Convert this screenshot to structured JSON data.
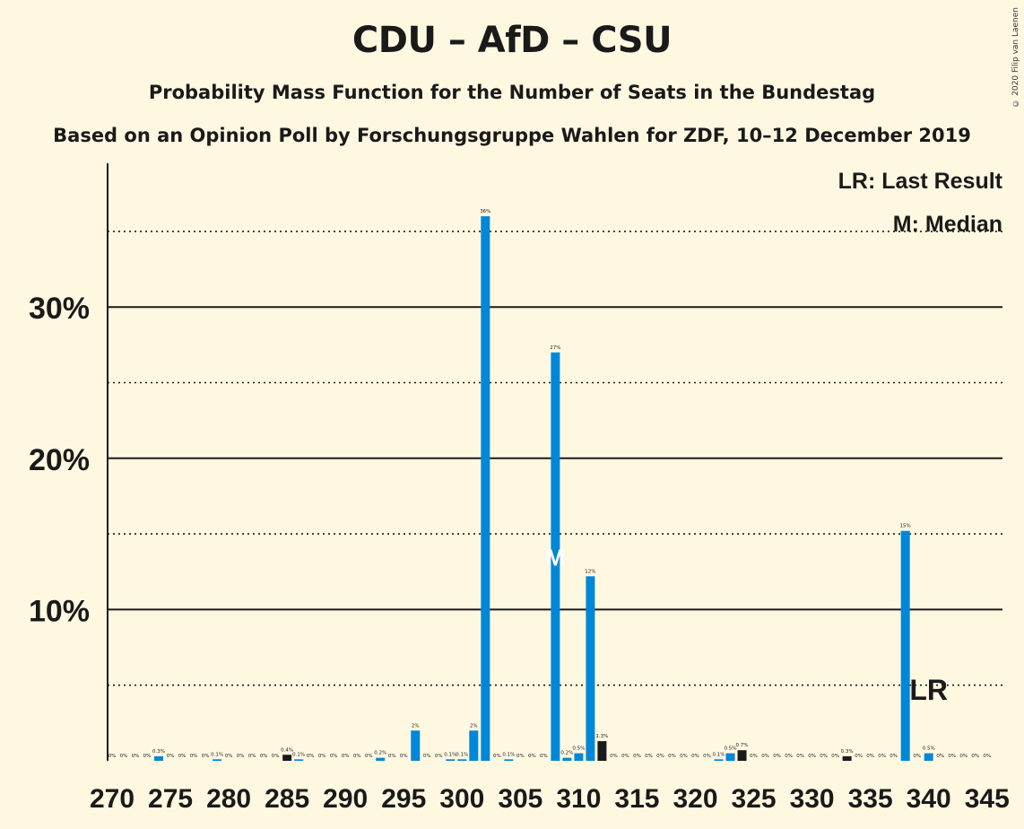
{
  "title": "CDU – AfD – CSU",
  "subtitle": "Probability Mass Function for the Number of Seats in the Bundestag",
  "subtitle2": "Based on an Opinion Poll by Forschungsgruppe Wahlen for ZDF, 10–12 December 2019",
  "copyright": "© 2020 Filip van Laenen",
  "legend": {
    "last_result": "LR: Last Result",
    "median": "M: Median"
  },
  "markers": {
    "median_label": "M",
    "median_seat": 308,
    "last_result_label": "LR",
    "last_result_seat": 340
  },
  "colors": {
    "background": "#FFF8E1",
    "bar_blue": "#0087D7",
    "bar_black": "#1a1a1a"
  },
  "chart_data": {
    "type": "bar",
    "title": "CDU – AfD – CSU",
    "xlabel": "",
    "ylabel": "",
    "ylim": [
      0,
      40
    ],
    "y_ticks": [
      "10%",
      "20%",
      "30%"
    ],
    "y_tick_values": [
      10,
      20,
      30
    ],
    "minor_gridlines": [
      5,
      15,
      25,
      35
    ],
    "x_ticks": [
      270,
      275,
      280,
      285,
      290,
      295,
      300,
      305,
      310,
      315,
      320,
      325,
      330,
      335,
      340,
      345
    ],
    "x_range": [
      270,
      345
    ],
    "bars": [
      {
        "seat": 270,
        "value": 0,
        "label": "0%",
        "color": "blue"
      },
      {
        "seat": 271,
        "value": 0,
        "label": "0%",
        "color": "blue"
      },
      {
        "seat": 272,
        "value": 0,
        "label": "0%",
        "color": "blue"
      },
      {
        "seat": 273,
        "value": 0,
        "label": "0%",
        "color": "blue"
      },
      {
        "seat": 274,
        "value": 0.3,
        "label": "0.3%",
        "color": "blue"
      },
      {
        "seat": 275,
        "value": 0,
        "label": "0%",
        "color": "blue"
      },
      {
        "seat": 276,
        "value": 0,
        "label": "0%",
        "color": "blue"
      },
      {
        "seat": 277,
        "value": 0,
        "label": "0%",
        "color": "blue"
      },
      {
        "seat": 278,
        "value": 0,
        "label": "0%",
        "color": "blue"
      },
      {
        "seat": 279,
        "value": 0.1,
        "label": "0.1%",
        "color": "blue"
      },
      {
        "seat": 280,
        "value": 0,
        "label": "0%",
        "color": "blue"
      },
      {
        "seat": 281,
        "value": 0,
        "label": "0%",
        "color": "blue"
      },
      {
        "seat": 282,
        "value": 0,
        "label": "0%",
        "color": "blue"
      },
      {
        "seat": 283,
        "value": 0,
        "label": "0%",
        "color": "blue"
      },
      {
        "seat": 284,
        "value": 0,
        "label": "0%",
        "color": "blue"
      },
      {
        "seat": 285,
        "value": 0.4,
        "label": "0.4%",
        "color": "black"
      },
      {
        "seat": 286,
        "value": 0.1,
        "label": "0.1%",
        "color": "blue"
      },
      {
        "seat": 287,
        "value": 0,
        "label": "0%",
        "color": "blue"
      },
      {
        "seat": 288,
        "value": 0,
        "label": "0%",
        "color": "blue"
      },
      {
        "seat": 289,
        "value": 0,
        "label": "0%",
        "color": "blue"
      },
      {
        "seat": 290,
        "value": 0,
        "label": "0%",
        "color": "blue"
      },
      {
        "seat": 291,
        "value": 0,
        "label": "0%",
        "color": "blue"
      },
      {
        "seat": 292,
        "value": 0,
        "label": "0%",
        "color": "blue"
      },
      {
        "seat": 293,
        "value": 0.2,
        "label": "0.2%",
        "color": "blue"
      },
      {
        "seat": 294,
        "value": 0,
        "label": "0%",
        "color": "blue"
      },
      {
        "seat": 295,
        "value": 0,
        "label": "0%",
        "color": "blue"
      },
      {
        "seat": 296,
        "value": 2,
        "label": "2%",
        "color": "blue"
      },
      {
        "seat": 297,
        "value": 0,
        "label": "0%",
        "color": "blue"
      },
      {
        "seat": 298,
        "value": 0,
        "label": "0%",
        "color": "blue"
      },
      {
        "seat": 299,
        "value": 0.1,
        "label": "0.1%",
        "color": "blue"
      },
      {
        "seat": 300,
        "value": 0.1,
        "label": "0.1%",
        "color": "blue"
      },
      {
        "seat": 301,
        "value": 2,
        "label": "2%",
        "color": "blue"
      },
      {
        "seat": 302,
        "value": 36,
        "label": "36%",
        "color": "blue"
      },
      {
        "seat": 303,
        "value": 0,
        "label": "0%",
        "color": "blue"
      },
      {
        "seat": 304,
        "value": 0.1,
        "label": "0.1%",
        "color": "blue"
      },
      {
        "seat": 305,
        "value": 0,
        "label": "0%",
        "color": "blue"
      },
      {
        "seat": 306,
        "value": 0,
        "label": "0%",
        "color": "blue"
      },
      {
        "seat": 307,
        "value": 0,
        "label": "0%",
        "color": "blue"
      },
      {
        "seat": 308,
        "value": 27,
        "label": "27%",
        "color": "blue"
      },
      {
        "seat": 309,
        "value": 0.2,
        "label": "0.2%",
        "color": "blue"
      },
      {
        "seat": 310,
        "value": 0.5,
        "label": "0.5%",
        "color": "blue"
      },
      {
        "seat": 311,
        "value": 12.2,
        "label": "12%",
        "color": "blue"
      },
      {
        "seat": 312,
        "value": 1.3,
        "label": "1.3%",
        "color": "black"
      },
      {
        "seat": 313,
        "value": 0,
        "label": "0%",
        "color": "blue"
      },
      {
        "seat": 314,
        "value": 0,
        "label": "0%",
        "color": "blue"
      },
      {
        "seat": 315,
        "value": 0,
        "label": "0%",
        "color": "blue"
      },
      {
        "seat": 316,
        "value": 0,
        "label": "0%",
        "color": "blue"
      },
      {
        "seat": 317,
        "value": 0,
        "label": "0%",
        "color": "blue"
      },
      {
        "seat": 318,
        "value": 0,
        "label": "0%",
        "color": "blue"
      },
      {
        "seat": 319,
        "value": 0,
        "label": "0%",
        "color": "blue"
      },
      {
        "seat": 320,
        "value": 0,
        "label": "0%",
        "color": "blue"
      },
      {
        "seat": 321,
        "value": 0,
        "label": "0%",
        "color": "blue"
      },
      {
        "seat": 322,
        "value": 0.1,
        "label": "0.1%",
        "color": "blue"
      },
      {
        "seat": 323,
        "value": 0.5,
        "label": "0.5%",
        "color": "blue"
      },
      {
        "seat": 324,
        "value": 0.7,
        "label": "0.7%",
        "color": "black"
      },
      {
        "seat": 325,
        "value": 0,
        "label": "0%",
        "color": "blue"
      },
      {
        "seat": 326,
        "value": 0,
        "label": "0%",
        "color": "blue"
      },
      {
        "seat": 327,
        "value": 0,
        "label": "0%",
        "color": "blue"
      },
      {
        "seat": 328,
        "value": 0,
        "label": "0%",
        "color": "blue"
      },
      {
        "seat": 329,
        "value": 0,
        "label": "0%",
        "color": "blue"
      },
      {
        "seat": 330,
        "value": 0,
        "label": "0%",
        "color": "blue"
      },
      {
        "seat": 331,
        "value": 0,
        "label": "0%",
        "color": "blue"
      },
      {
        "seat": 332,
        "value": 0,
        "label": "0%",
        "color": "blue"
      },
      {
        "seat": 333,
        "value": 0.3,
        "label": "0.3%",
        "color": "black"
      },
      {
        "seat": 334,
        "value": 0,
        "label": "0%",
        "color": "blue"
      },
      {
        "seat": 335,
        "value": 0,
        "label": "0%",
        "color": "blue"
      },
      {
        "seat": 336,
        "value": 0,
        "label": "0%",
        "color": "blue"
      },
      {
        "seat": 337,
        "value": 0,
        "label": "0%",
        "color": "blue"
      },
      {
        "seat": 338,
        "value": 15.2,
        "label": "15%",
        "color": "blue"
      },
      {
        "seat": 339,
        "value": 0,
        "label": "0%",
        "color": "blue"
      },
      {
        "seat": 340,
        "value": 0.5,
        "label": "0.5%",
        "color": "blue"
      },
      {
        "seat": 341,
        "value": 0,
        "label": "0%",
        "color": "blue"
      },
      {
        "seat": 342,
        "value": 0,
        "label": "0%",
        "color": "blue"
      },
      {
        "seat": 343,
        "value": 0,
        "label": "0%",
        "color": "blue"
      },
      {
        "seat": 344,
        "value": 0,
        "label": "0%",
        "color": "blue"
      },
      {
        "seat": 345,
        "value": 0,
        "label": "0%",
        "color": "blue"
      }
    ]
  }
}
